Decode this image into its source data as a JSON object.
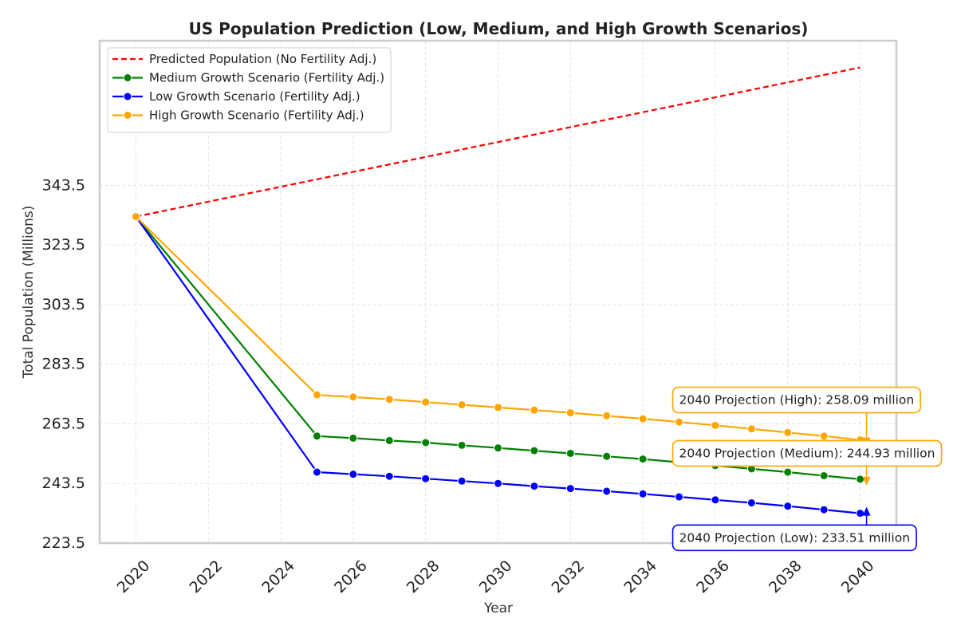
{
  "chart_data": {
    "type": "line",
    "title": "US Population Prediction (Low, Medium, and High Growth Scenarios)",
    "xlabel": "Year",
    "ylabel": "Total Population (Millions)",
    "xlim": [
      2019,
      2041
    ],
    "ylim": [
      223.5,
      392
    ],
    "xticks": [
      2020,
      2022,
      2024,
      2026,
      2028,
      2030,
      2032,
      2034,
      2036,
      2038,
      2040
    ],
    "yticks": [
      223.5,
      243.5,
      263.5,
      283.5,
      303.5,
      323.5,
      343.5
    ],
    "grid": true,
    "legend_position": "top-left",
    "series": [
      {
        "name": "Predicted Population (No Fertility Adj.)",
        "color": "#ff0000",
        "style": "dashed",
        "markers": false,
        "x": [
          2020,
          2040
        ],
        "values": [
          333.0,
          383.0
        ]
      },
      {
        "name": "Medium Growth Scenario (Fertility Adj.)",
        "color": "#008000",
        "style": "solid",
        "markers": true,
        "x": [
          2020,
          2025,
          2026,
          2027,
          2028,
          2029,
          2030,
          2031,
          2032,
          2033,
          2034,
          2035,
          2036,
          2037,
          2038,
          2039,
          2040
        ],
        "values": [
          333.0,
          259.4,
          258.7,
          257.9,
          257.2,
          256.3,
          255.4,
          254.5,
          253.6,
          252.6,
          251.7,
          250.6,
          249.5,
          248.4,
          247.3,
          246.1,
          244.93
        ]
      },
      {
        "name": "Low Growth Scenario (Fertility Adj.)",
        "color": "#0000ff",
        "style": "solid",
        "markers": true,
        "x": [
          2020,
          2025,
          2026,
          2027,
          2028,
          2029,
          2030,
          2031,
          2032,
          2033,
          2034,
          2035,
          2036,
          2037,
          2038,
          2039,
          2040
        ],
        "values": [
          333.0,
          247.3,
          246.6,
          245.9,
          245.1,
          244.3,
          243.5,
          242.6,
          241.8,
          240.9,
          240.0,
          239.0,
          238.0,
          237.0,
          235.9,
          234.7,
          233.51
        ]
      },
      {
        "name": "High Growth Scenario (Fertility Adj.)",
        "color": "#ffa500",
        "style": "solid",
        "markers": true,
        "x": [
          2020,
          2025,
          2026,
          2027,
          2028,
          2029,
          2030,
          2031,
          2032,
          2033,
          2034,
          2035,
          2036,
          2037,
          2038,
          2039,
          2040
        ],
        "values": [
          333.0,
          273.2,
          272.5,
          271.7,
          270.8,
          269.9,
          269.0,
          268.1,
          267.2,
          266.2,
          265.2,
          264.1,
          263.0,
          261.8,
          260.6,
          259.4,
          258.09
        ]
      }
    ],
    "annotations": [
      {
        "text": "2040 Projection (High): 258.09 million",
        "color": "#ffa500",
        "point_x": 2040,
        "point_y": 258.09,
        "text_x": 2035,
        "text_y": 271.5
      },
      {
        "text": "2040 Projection (Medium): 244.93 million",
        "color": "#ffa500",
        "point_x": 2040,
        "point_y": 244.93,
        "text_x": 2035,
        "text_y": 253.6
      },
      {
        "text": "2040 Projection (Low): 233.51 million",
        "color": "#0000ff",
        "point_x": 2040,
        "point_y": 233.51,
        "text_x": 2035,
        "text_y": 225.3
      }
    ]
  }
}
